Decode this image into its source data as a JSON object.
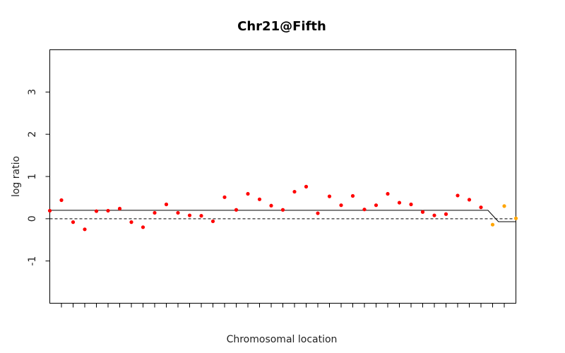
{
  "chart_data": {
    "type": "scatter",
    "title": "Chr21@Fifth",
    "xlabel": "Chromosomal location",
    "ylabel": "log ratio",
    "ylim": [
      -2,
      4
    ],
    "yticks": [
      -1,
      0,
      1,
      2,
      3
    ],
    "xlim": [
      0,
      40
    ],
    "x_tick_count": 40,
    "reference_line": {
      "y": 0,
      "style": "dashed"
    },
    "colors": {
      "point_default": "#ff0000",
      "point_low": "#ffa500",
      "segment_line": "#000000"
    },
    "series": [
      {
        "kind": "points",
        "x": [
          0,
          1,
          2,
          3,
          4,
          5,
          6,
          7,
          8,
          9,
          10,
          11,
          12,
          13,
          14,
          15,
          16,
          17,
          18,
          19,
          20,
          21,
          22,
          23,
          24,
          25,
          26,
          27,
          28,
          29,
          30,
          31,
          32,
          33,
          34,
          35,
          36,
          37,
          38,
          39,
          40
        ],
        "y": [
          0.19,
          0.44,
          -0.08,
          -0.25,
          0.18,
          0.19,
          0.24,
          -0.08,
          -0.2,
          0.14,
          0.34,
          0.14,
          0.08,
          0.07,
          -0.06,
          0.51,
          0.21,
          0.59,
          0.46,
          0.31,
          0.21,
          0.64,
          0.76,
          0.13,
          0.53,
          0.32,
          0.54,
          0.22,
          0.32,
          0.59,
          0.38,
          0.34,
          0.16,
          0.08,
          0.11,
          0.55,
          0.45,
          0.27,
          -0.14,
          0.3,
          0.01
        ],
        "color_group": [
          "default",
          "default",
          "default",
          "default",
          "default",
          "default",
          "default",
          "default",
          "default",
          "default",
          "default",
          "default",
          "default",
          "default",
          "default",
          "default",
          "default",
          "default",
          "default",
          "default",
          "default",
          "default",
          "default",
          "default",
          "default",
          "default",
          "default",
          "default",
          "default",
          "default",
          "default",
          "default",
          "default",
          "default",
          "default",
          "default",
          "default",
          "default",
          "low",
          "low",
          "low"
        ]
      },
      {
        "kind": "segments",
        "x": [
          0,
          37.6,
          38.5,
          40
        ],
        "y": [
          0.2,
          0.2,
          -0.07,
          -0.07
        ]
      }
    ]
  }
}
